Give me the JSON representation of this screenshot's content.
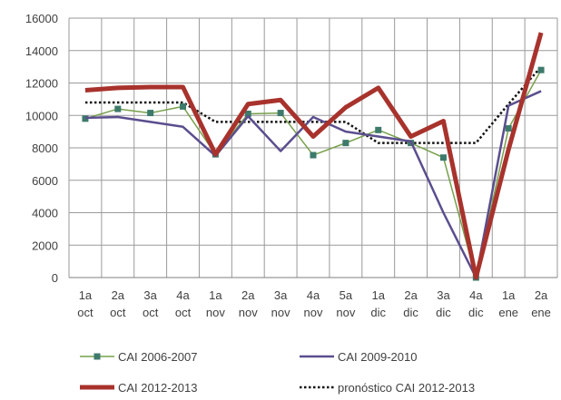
{
  "chart_data": {
    "type": "line",
    "title": "",
    "xlabel": "",
    "ylabel": "",
    "ylim": [
      0,
      16000
    ],
    "yticks": [
      0,
      2000,
      4000,
      6000,
      8000,
      10000,
      12000,
      14000,
      16000
    ],
    "grid": true,
    "legend_placement": "bottom",
    "categories": [
      [
        "1a",
        "oct"
      ],
      [
        "2a",
        "oct"
      ],
      [
        "3a",
        "oct"
      ],
      [
        "4a",
        "oct"
      ],
      [
        "1a",
        "nov"
      ],
      [
        "2a",
        "nov"
      ],
      [
        "3a",
        "nov"
      ],
      [
        "4a",
        "nov"
      ],
      [
        "5a",
        "nov"
      ],
      [
        "1a",
        "dic"
      ],
      [
        "2a",
        "dic"
      ],
      [
        "3a",
        "dic"
      ],
      [
        "4a",
        "dic"
      ],
      [
        "1a",
        "ene"
      ],
      [
        "2a",
        "ene"
      ]
    ],
    "series": [
      {
        "name": "CAI 2006-2007",
        "color": "#77a04b",
        "marker_color": "#3d7a6b",
        "style": "solid-marker",
        "values": [
          9800,
          10400,
          10150,
          10550,
          7600,
          10100,
          10150,
          7550,
          8300,
          9100,
          8300,
          7400,
          0,
          9200,
          12800
        ]
      },
      {
        "name": "CAI 2009-2010",
        "color": "#5b4e8e",
        "style": "solid",
        "values": [
          9850,
          9900,
          9600,
          9300,
          7500,
          9950,
          7800,
          9900,
          9000,
          8700,
          8400,
          4000,
          0,
          10600,
          11500
        ]
      },
      {
        "name": "CAI 2012-2013",
        "color": "#a8322c",
        "style": "thick",
        "values": [
          11550,
          11700,
          11750,
          11750,
          7600,
          10700,
          10950,
          8700,
          10500,
          11700,
          8700,
          9650,
          0,
          7900,
          15100
        ]
      },
      {
        "name": "pronóstico CAI 2012-2013",
        "color": "#111111",
        "style": "dotted",
        "values": [
          10800,
          10800,
          10800,
          10800,
          9600,
          9600,
          9600,
          9600,
          9600,
          8300,
          8300,
          8300,
          8300,
          10700,
          13000
        ]
      }
    ]
  }
}
